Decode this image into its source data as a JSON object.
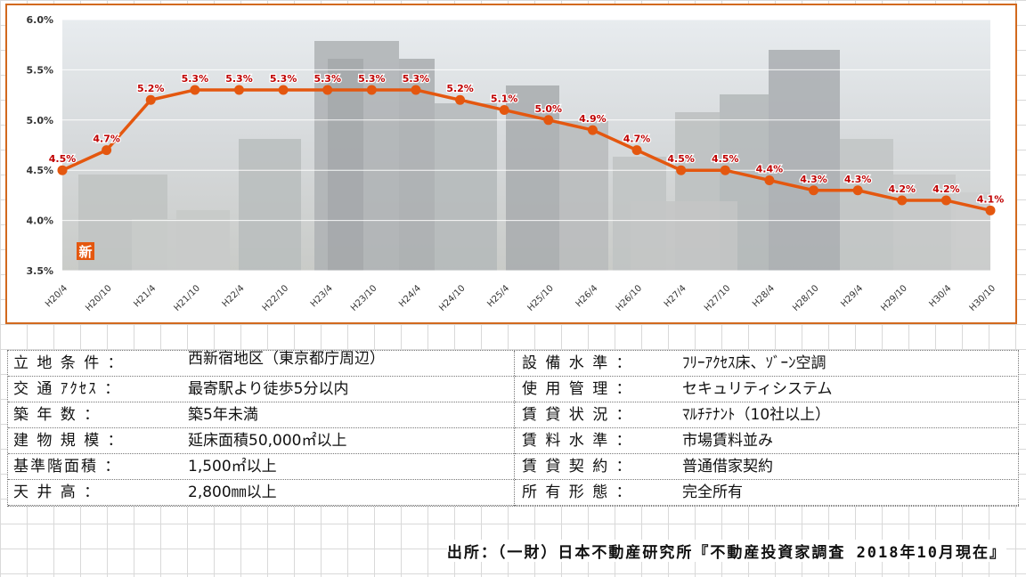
{
  "chart_data": {
    "type": "line",
    "categories": [
      "H20/4",
      "H20/10",
      "H21/4",
      "H21/10",
      "H22/4",
      "H22/10",
      "H23/4",
      "H23/10",
      "H24/4",
      "H24/10",
      "H25/4",
      "H25/10",
      "H26/4",
      "H26/10",
      "H27/4",
      "H27/10",
      "H28/4",
      "H28/10",
      "H29/4",
      "H29/10",
      "H30/4",
      "H30/10"
    ],
    "values": [
      4.5,
      4.7,
      5.2,
      5.3,
      5.3,
      5.3,
      5.3,
      5.3,
      5.3,
      5.2,
      5.1,
      5.0,
      4.9,
      4.7,
      4.5,
      4.5,
      4.4,
      4.3,
      4.3,
      4.2,
      4.2,
      4.1
    ],
    "data_labels": [
      "4.5%",
      "4.7%",
      "5.2%",
      "5.3%",
      "5.3%",
      "5.3%",
      "5.3%",
      "5.3%",
      "5.3%",
      "5.2%",
      "5.1%",
      "5.0%",
      "4.9%",
      "4.7%",
      "4.5%",
      "4.5%",
      "4.4%",
      "4.3%",
      "4.3%",
      "4.2%",
      "4.2%",
      "4.1%"
    ],
    "yticks": [
      "3.5%",
      "4.0%",
      "4.5%",
      "5.0%",
      "5.5%",
      "6.0%"
    ],
    "ylim": [
      3.5,
      6.0
    ],
    "grid": true,
    "line_color": "#e4570f",
    "label_color": "#c00000",
    "badge": "新"
  },
  "info": {
    "left": [
      {
        "label": "立 地 条 件 ：",
        "value": "西新宿地区（東京都庁周辺）"
      },
      {
        "label": "交 通 ｱｸｾｽ ：",
        "value": "最寄駅より徒歩5分以内"
      },
      {
        "label": "築   年   数 ：",
        "value": "築5年未満"
      },
      {
        "label": "建 物 規 模 ：",
        "value": "延床面積50,000㎡以上"
      },
      {
        "label": "基準階面積 ：",
        "value": "1,500㎡以上"
      },
      {
        "label": "天   井   高 ：",
        "value": "2,800㎜以上"
      }
    ],
    "right": [
      {
        "label": "設 備 水 準 ：",
        "value": "ﾌﾘｰｱｸｾｽ床、ｿﾞｰﾝ空調"
      },
      {
        "label": "使 用 管 理 ：",
        "value": "セキュリティシステム"
      },
      {
        "label": "賃 貸 状 況 ：",
        "value": "ﾏﾙﾁﾃﾅﾝﾄ（10社以上）"
      },
      {
        "label": "賃 料 水 準 ：",
        "value": "市場賃料並み"
      },
      {
        "label": "賃 貸 契 約 ：",
        "value": "普通借家契約"
      },
      {
        "label": "所 有 形 態 ：",
        "value": "完全所有"
      }
    ]
  },
  "source": "出所：（一財）日本不動産研究所『不動産投資家調査 2018年10月現在』"
}
